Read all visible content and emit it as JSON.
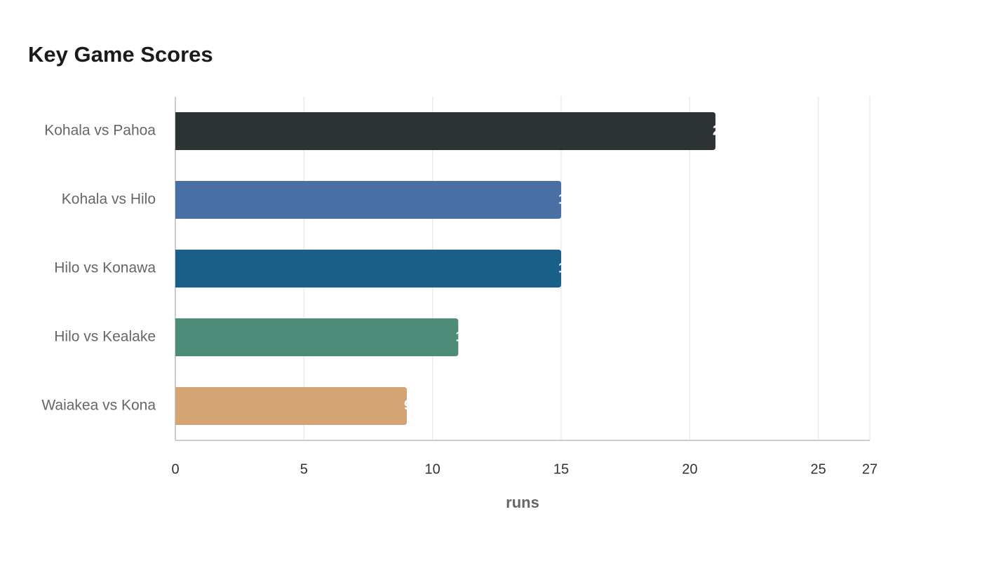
{
  "chart_data": {
    "type": "bar",
    "orientation": "horizontal",
    "title": "Key Game Scores",
    "categories": [
      "Kohala vs Pahoa",
      "Kohala vs Hilo",
      "Hilo vs Konawa",
      "Hilo vs Kealake",
      "Waiakea vs Kona"
    ],
    "values": [
      21,
      15,
      15,
      11,
      9
    ],
    "colors": [
      "#2e3436",
      "#4a6fa5",
      "#1a6089",
      "#4e8c7a",
      "#d4a574"
    ],
    "x_label": "runs",
    "xlim": [
      0,
      27
    ],
    "xticks": [
      0,
      5,
      10,
      15,
      20,
      25,
      27
    ],
    "grid": true
  }
}
